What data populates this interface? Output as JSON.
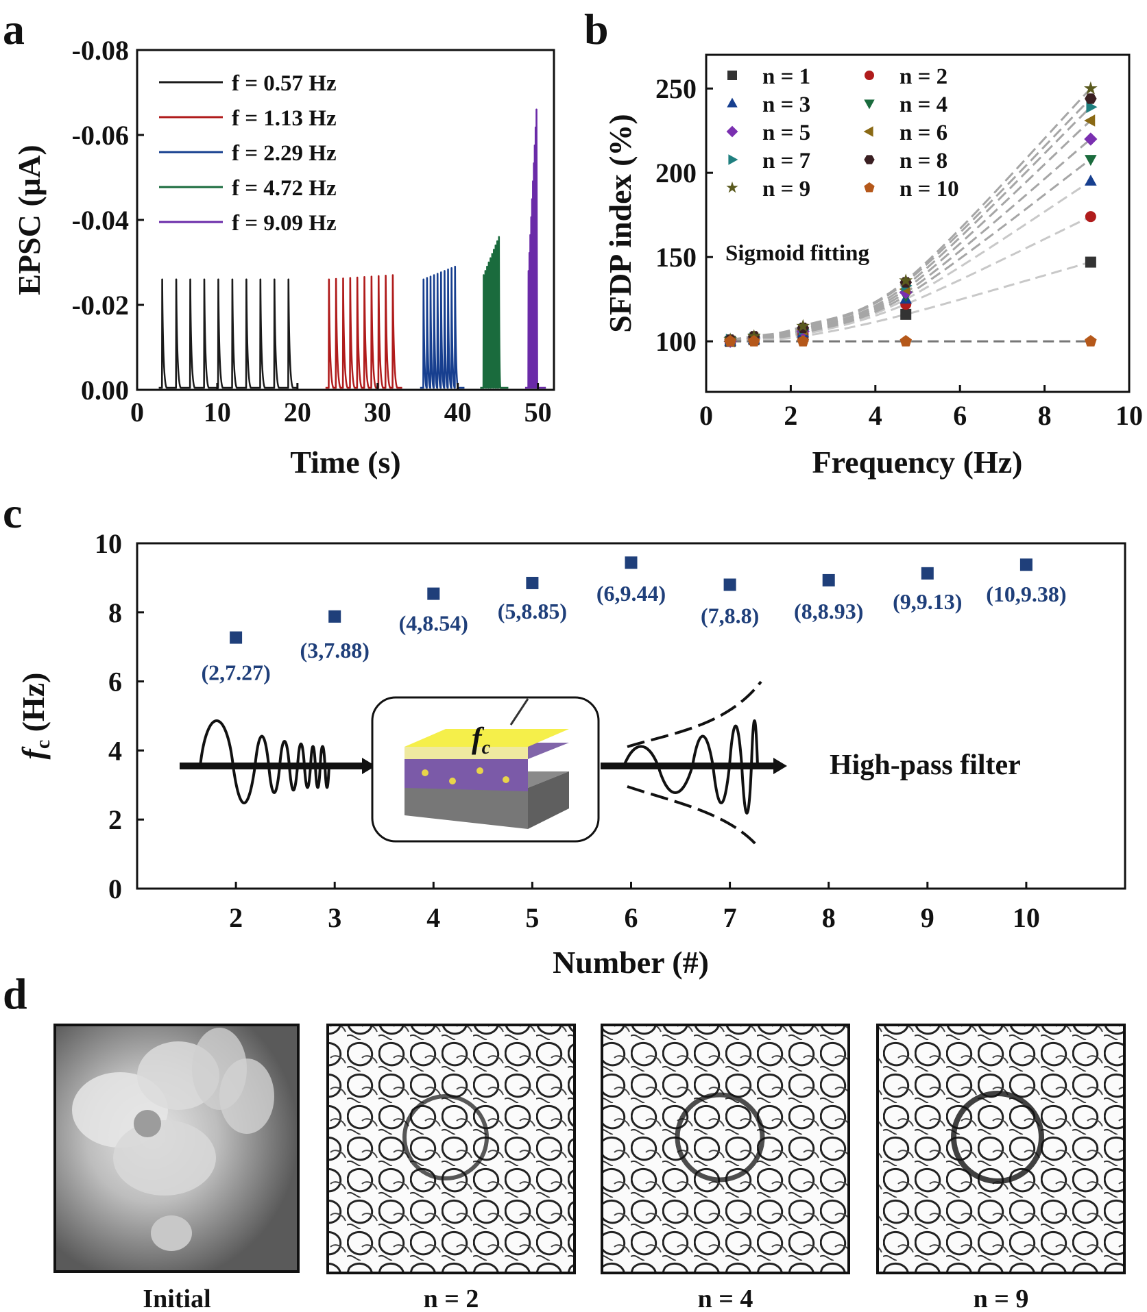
{
  "panel_labels": [
    "a",
    "b",
    "c",
    "d"
  ],
  "chart_data": [
    {
      "id": "a",
      "type": "line",
      "title": "",
      "xlabel": "Time (s)",
      "ylabel": "EPSC (µA)",
      "xlim": [
        0,
        52
      ],
      "ylim": [
        0,
        -0.08
      ],
      "xticks": [
        "0",
        "10",
        "20",
        "30",
        "40",
        "50"
      ],
      "xtick_values": [
        0,
        10,
        20,
        30,
        40,
        50
      ],
      "yticks": [
        "0.00",
        "-0.02",
        "-0.04",
        "-0.06",
        "-0.08"
      ],
      "ytick_values": [
        0,
        -0.02,
        -0.04,
        -0.06,
        -0.08
      ],
      "legend": "top-left",
      "series": [
        {
          "name": "f = 0.57 Hz",
          "color": "#1a1a1a",
          "start": 3.1,
          "period": 1.75,
          "pulses": 10,
          "peak": [
            -0.026,
            -0.026
          ]
        },
        {
          "name": "f = 1.13 Hz",
          "color": "#b01c1c",
          "start": 23.9,
          "period": 0.885,
          "pulses": 10,
          "peak": [
            -0.026,
            -0.027
          ]
        },
        {
          "name": "f = 2.29 Hz",
          "color": "#173f8f",
          "start": 35.7,
          "period": 0.437,
          "pulses": 10,
          "peak": [
            -0.026,
            -0.029
          ]
        },
        {
          "name": "f = 4.72 Hz",
          "color": "#1a6b3d",
          "start": 43.2,
          "period": 0.212,
          "pulses": 10,
          "peak": [
            -0.027,
            -0.036
          ]
        },
        {
          "name": "f = 9.09 Hz",
          "color": "#6a2aa8",
          "start": 48.8,
          "period": 0.11,
          "pulses": 10,
          "peak": [
            -0.028,
            -0.066
          ]
        }
      ]
    },
    {
      "id": "b",
      "type": "scatter",
      "title": "",
      "xlabel": "Frequency (Hz)",
      "ylabel": "SFDP index (%)",
      "xlim": [
        0,
        10
      ],
      "ylim": [
        70,
        270
      ],
      "xticks": [
        "0",
        "2",
        "4",
        "6",
        "8",
        "10"
      ],
      "xtick_values": [
        0,
        2,
        4,
        6,
        8,
        10
      ],
      "yticks": [
        "100",
        "150",
        "200",
        "250"
      ],
      "ytick_values": [
        100,
        150,
        200,
        250
      ],
      "annotation": "Sigmoid fitting",
      "legend": "top-left",
      "x": [
        0.57,
        1.13,
        2.29,
        4.72,
        9.09
      ],
      "series": [
        {
          "name": "n = 1",
          "marker": "square",
          "color": "#333333",
          "values": [
            100,
            101,
            103,
            116,
            147
          ]
        },
        {
          "name": "n = 2",
          "marker": "circle",
          "color": "#b01c1c",
          "values": [
            100,
            101,
            104,
            122,
            174
          ]
        },
        {
          "name": "n = 3",
          "marker": "triangle-up",
          "color": "#173f8f",
          "values": [
            100,
            101,
            105,
            125,
            195
          ]
        },
        {
          "name": "n = 4",
          "marker": "triangle-down",
          "color": "#1a6b3d",
          "values": [
            100,
            102,
            105,
            127,
            208
          ]
        },
        {
          "name": "n = 5",
          "marker": "diamond",
          "color": "#7a2fb0",
          "values": [
            100,
            102,
            106,
            129,
            220
          ]
        },
        {
          "name": "n = 6",
          "marker": "triangle-left",
          "color": "#8a6914",
          "values": [
            100,
            102,
            107,
            131,
            231
          ]
        },
        {
          "name": "n = 7",
          "marker": "triangle-right",
          "color": "#1f7f7f",
          "values": [
            101,
            102,
            107,
            133,
            239
          ]
        },
        {
          "name": "n = 8",
          "marker": "hexagon",
          "color": "#3a1f22",
          "values": [
            101,
            103,
            108,
            135,
            244
          ]
        },
        {
          "name": "n = 9",
          "marker": "star",
          "color": "#5a5a1e",
          "values": [
            101,
            103,
            109,
            136,
            250
          ]
        },
        {
          "name": "n = 10",
          "marker": "pentagon",
          "color": "#b5581a",
          "values": [
            100,
            100,
            100,
            100,
            100
          ]
        }
      ]
    },
    {
      "id": "c",
      "type": "scatter",
      "title": "",
      "xlabel": "Number (#)",
      "ylabel_main": "f",
      "ylabel_sub": "c",
      "ylabel_tail": " (Hz)",
      "xlim": [
        1,
        11
      ],
      "ylim": [
        0,
        10
      ],
      "xticks": [
        "2",
        "3",
        "4",
        "5",
        "6",
        "7",
        "8",
        "9",
        "10"
      ],
      "xtick_values": [
        2,
        3,
        4,
        5,
        6,
        7,
        8,
        9,
        10
      ],
      "yticks": [
        "0",
        "2",
        "4",
        "6",
        "8",
        "10"
      ],
      "ytick_values": [
        0,
        2,
        4,
        6,
        8,
        10
      ],
      "color": "#1f3f7a",
      "x": [
        2,
        3,
        4,
        5,
        6,
        7,
        8,
        9,
        10
      ],
      "values": [
        7.27,
        7.88,
        8.54,
        8.85,
        9.44,
        8.8,
        8.93,
        9.13,
        9.38
      ],
      "data_labels": [
        "(2,7.27)",
        "(3,7.88)",
        "(4,8.54)",
        "(5,8.85)",
        "(6,9.44)",
        "(7,8.8)",
        "(8,8.93)",
        "(9,9.13)",
        "(10,9.38)"
      ],
      "inset_label_main": "f",
      "inset_label_sub": "c",
      "filter_label": "High-pass filter"
    }
  ],
  "images": {
    "captions": [
      "Initial",
      "n = 2",
      "n = 4",
      "n = 9"
    ]
  }
}
